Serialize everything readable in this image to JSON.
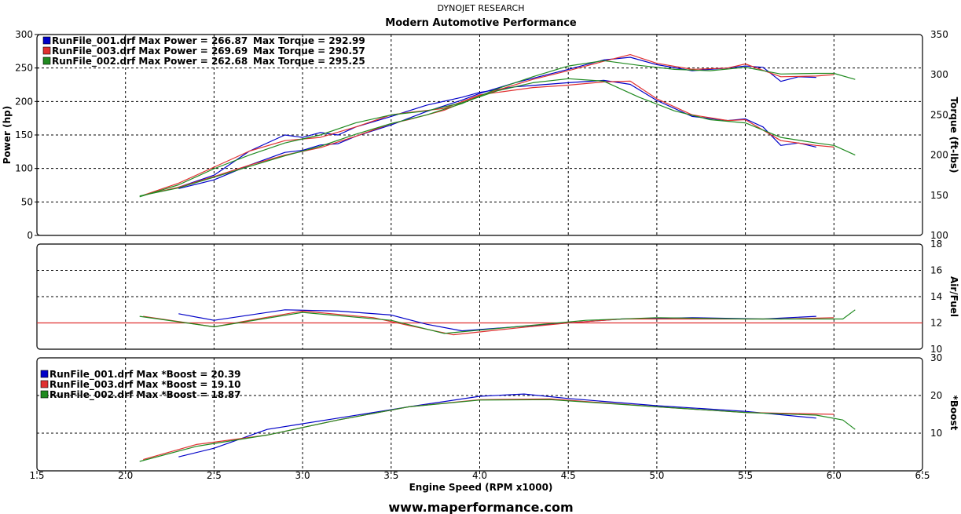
{
  "header": {
    "company": "DYNOJET RESEARCH",
    "title": "Modern Automotive Performance"
  },
  "footer": {
    "url": "www.maperformance.com"
  },
  "colors": {
    "run001": "#0000c8",
    "run003": "#e03030",
    "run002": "#208a20",
    "afr_ref": "#e03030"
  },
  "chart_data": [
    {
      "type": "line",
      "panel": "power-torque",
      "ylabel": "Power (hp)",
      "ylim": [
        0,
        300
      ],
      "yticks": [
        0,
        50,
        100,
        150,
        200,
        250,
        300
      ],
      "y2label": "Torque (ft-lbs)",
      "y2lim": [
        100,
        350
      ],
      "y2ticks": [
        100,
        150,
        200,
        250,
        300,
        350
      ],
      "grid": true,
      "legend": [
        {
          "text": "RunFile_001.drf Max Power = 266.87",
          "text2": "Max Torque = 292.99",
          "color": "#0000c8"
        },
        {
          "text": "RunFile_003.drf Max Power = 269.69",
          "text2": "Max Torque = 290.57",
          "color": "#e03030"
        },
        {
          "text": "RunFile_002.drf Max Power = 262.68",
          "text2": "Max Torque = 295.25",
          "color": "#208a20"
        }
      ],
      "series": [
        {
          "name": "RunFile_001 Power",
          "axis": "y",
          "color": "#0000c8",
          "x": [
            2.3,
            2.5,
            2.7,
            2.9,
            3.0,
            3.1,
            3.2,
            3.3,
            3.5,
            3.7,
            3.9,
            4.0,
            4.2,
            4.5,
            4.7,
            4.85,
            5.0,
            5.2,
            5.4,
            5.5,
            5.6,
            5.7,
            5.8,
            5.9
          ],
          "values": [
            70,
            83,
            105,
            124,
            127,
            135,
            137,
            148,
            165,
            185,
            202,
            212,
            228,
            248,
            262,
            266,
            255,
            246,
            250,
            253,
            251,
            230,
            237,
            236
          ]
        },
        {
          "name": "RunFile_001 Torque",
          "axis": "y2",
          "color": "#0000c8",
          "x": [
            2.3,
            2.5,
            2.7,
            2.9,
            3.0,
            3.1,
            3.2,
            3.3,
            3.5,
            3.7,
            3.9,
            4.0,
            4.2,
            4.5,
            4.7,
            4.85,
            5.0,
            5.2,
            5.4,
            5.5,
            5.6,
            5.7,
            5.8,
            5.9
          ],
          "values": [
            160,
            175,
            205,
            225,
            222,
            228,
            225,
            235,
            248,
            262,
            272,
            278,
            285,
            290,
            293,
            288,
            268,
            248,
            243,
            245,
            235,
            212,
            215,
            210
          ]
        },
        {
          "name": "RunFile_003 Power",
          "axis": "y",
          "color": "#e03030",
          "x": [
            2.1,
            2.3,
            2.5,
            2.7,
            2.9,
            3.1,
            3.3,
            3.5,
            3.6,
            3.8,
            4.0,
            4.3,
            4.5,
            4.7,
            4.85,
            5.0,
            5.2,
            5.4,
            5.5,
            5.7,
            5.9,
            6.0
          ],
          "values": [
            60,
            72,
            88,
            105,
            120,
            131,
            148,
            167,
            173,
            187,
            209,
            233,
            246,
            260,
            270,
            257,
            248,
            250,
            256,
            237,
            238,
            240
          ]
        },
        {
          "name": "RunFile_003 Torque",
          "axis": "y2",
          "color": "#e03030",
          "x": [
            2.1,
            2.3,
            2.5,
            2.7,
            2.9,
            3.1,
            3.3,
            3.5,
            3.6,
            3.8,
            4.0,
            4.3,
            4.5,
            4.7,
            4.85,
            5.0,
            5.2,
            5.4,
            5.5,
            5.7,
            5.9,
            6.0
          ],
          "values": [
            150,
            165,
            185,
            205,
            218,
            222,
            235,
            250,
            253,
            258,
            275,
            284,
            287,
            291,
            292,
            270,
            250,
            243,
            244,
            218,
            212,
            210
          ]
        },
        {
          "name": "RunFile_002 Power",
          "axis": "y",
          "color": "#208a20",
          "x": [
            2.08,
            2.3,
            2.5,
            2.7,
            2.9,
            3.1,
            3.3,
            3.5,
            3.7,
            3.9,
            4.1,
            4.3,
            4.5,
            4.7,
            4.9,
            5.1,
            5.3,
            5.5,
            5.7,
            5.9,
            6.0,
            6.12
          ],
          "values": [
            59,
            71,
            87,
            103,
            119,
            133,
            151,
            167,
            180,
            197,
            219,
            237,
            253,
            261,
            254,
            248,
            246,
            251,
            241,
            242,
            242,
            233
          ]
        },
        {
          "name": "RunFile_002 Torque",
          "axis": "y2",
          "color": "#208a20",
          "x": [
            2.08,
            2.3,
            2.5,
            2.7,
            2.9,
            3.1,
            3.3,
            3.5,
            3.7,
            3.9,
            4.1,
            4.3,
            4.5,
            4.7,
            4.9,
            5.1,
            5.3,
            5.5,
            5.7,
            5.9,
            6.0,
            6.12
          ],
          "values": [
            148,
            163,
            183,
            200,
            215,
            225,
            240,
            250,
            255,
            265,
            280,
            290,
            295,
            292,
            272,
            255,
            244,
            240,
            222,
            215,
            212,
            200
          ]
        }
      ]
    },
    {
      "type": "line",
      "panel": "air-fuel",
      "y2label": "Air/Fuel",
      "y2lim": [
        10,
        18
      ],
      "y2ticks": [
        10,
        12,
        14,
        16,
        18
      ],
      "reference_line": 12,
      "grid": true,
      "series": [
        {
          "name": "RunFile_001 AFR",
          "color": "#0000c8",
          "x": [
            2.3,
            2.5,
            2.9,
            3.2,
            3.5,
            3.7,
            3.9,
            4.2,
            4.5,
            4.8,
            5.2,
            5.6,
            5.9
          ],
          "values": [
            12.7,
            12.2,
            13.0,
            12.9,
            12.6,
            11.9,
            11.4,
            11.7,
            12.0,
            12.3,
            12.4,
            12.3,
            12.5
          ]
        },
        {
          "name": "RunFile_003 AFR",
          "color": "#e03030",
          "x": [
            2.1,
            2.5,
            2.7,
            3.0,
            3.4,
            3.6,
            3.85,
            4.2,
            4.5,
            4.8,
            5.3,
            5.7,
            6.0
          ],
          "values": [
            12.5,
            11.7,
            12.2,
            12.9,
            12.4,
            11.8,
            11.1,
            11.6,
            12.0,
            12.3,
            12.3,
            12.3,
            12.4
          ]
        },
        {
          "name": "RunFile_002 AFR",
          "color": "#208a20",
          "x": [
            2.08,
            2.5,
            3.0,
            3.5,
            3.8,
            4.2,
            4.6,
            5.0,
            5.5,
            5.9,
            6.05,
            6.12
          ],
          "values": [
            12.5,
            11.7,
            12.8,
            12.2,
            11.2,
            11.7,
            12.2,
            12.4,
            12.3,
            12.3,
            12.3,
            13.0
          ]
        }
      ]
    },
    {
      "type": "line",
      "panel": "boost",
      "xlabel": "Engine Speed (RPM x1000)",
      "xlim": [
        1.5,
        6.5
      ],
      "xticks": [
        "1.5",
        "2.0",
        "2.5",
        "3.0",
        "3.5",
        "4.0",
        "4.5",
        "5.0",
        "5.5",
        "6.0",
        "6.5"
      ],
      "y2label": "*Boost",
      "y2lim": [
        0,
        30
      ],
      "y2ticks": [
        10,
        20,
        30
      ],
      "grid": true,
      "legend": [
        {
          "text": "RunFile_001.drf Max *Boost = 20.39",
          "color": "#0000c8"
        },
        {
          "text": "RunFile_003.drf Max *Boost = 19.10",
          "color": "#e03030"
        },
        {
          "text": "RunFile_002.drf Max *Boost = 18.87",
          "color": "#208a20"
        }
      ],
      "series": [
        {
          "name": "RunFile_001 Boost",
          "color": "#0000c8",
          "x": [
            2.3,
            2.5,
            2.8,
            3.2,
            3.6,
            4.0,
            4.25,
            4.5,
            5.0,
            5.5,
            5.9
          ],
          "values": [
            3.7,
            6,
            11,
            14,
            17,
            19.8,
            20.4,
            19.2,
            17.3,
            15.8,
            14
          ]
        },
        {
          "name": "RunFile_003 Boost",
          "color": "#e03030",
          "x": [
            2.1,
            2.4,
            2.8,
            3.2,
            3.6,
            4.0,
            4.4,
            5.0,
            5.5,
            6.0
          ],
          "values": [
            3,
            7,
            9.5,
            13.5,
            17,
            18.9,
            19.1,
            17,
            15.5,
            15
          ]
        },
        {
          "name": "RunFile_002 Boost",
          "color": "#208a20",
          "x": [
            2.08,
            2.4,
            2.8,
            3.2,
            3.6,
            4.0,
            4.4,
            5.0,
            5.5,
            5.9,
            6.05,
            6.12
          ],
          "values": [
            2.5,
            6.5,
            9.5,
            13.5,
            17,
            18.8,
            18.9,
            17,
            15.5,
            14.8,
            13.5,
            11
          ]
        }
      ]
    }
  ]
}
